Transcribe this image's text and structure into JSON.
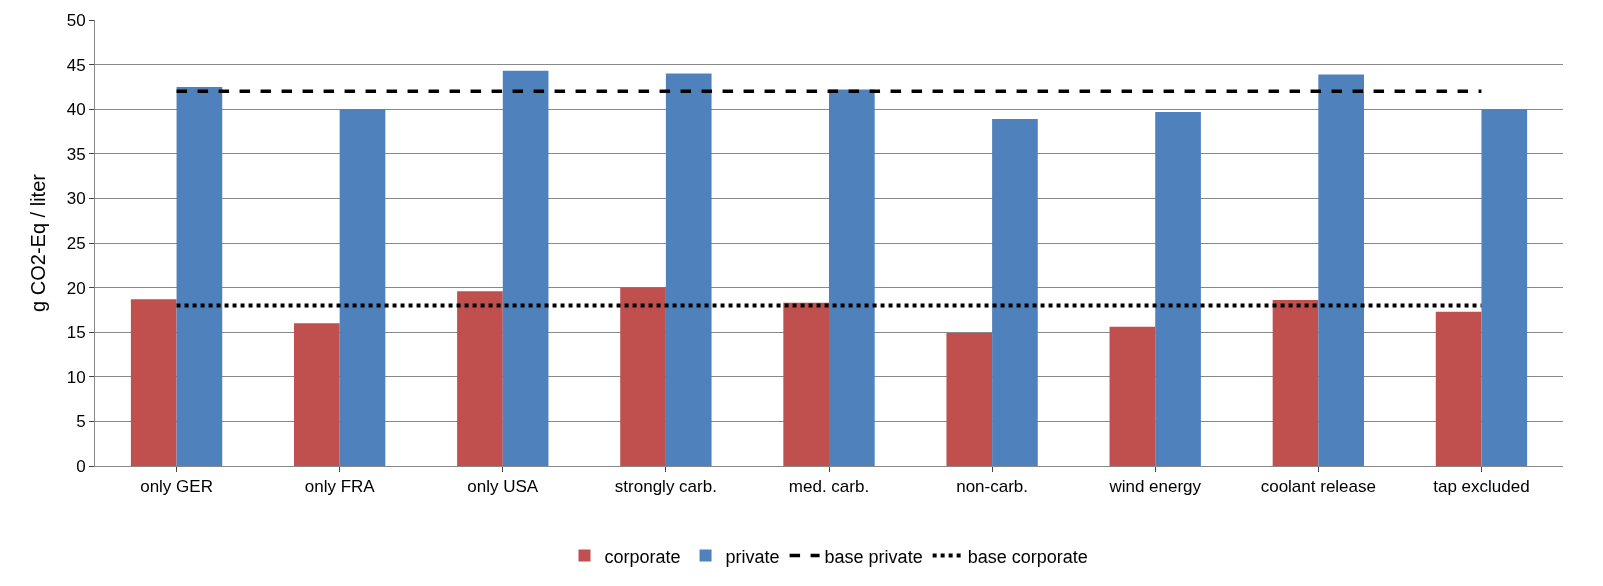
{
  "chart_data": {
    "type": "bar",
    "ylabel": "g CO2-Eq / liter",
    "categories": [
      "only GER",
      "only FRA",
      "only USA",
      "strongly carb.",
      "med. carb.",
      "non-carb.",
      "wind energy",
      "coolant release",
      "tap excluded"
    ],
    "series": [
      {
        "name": "corporate",
        "color": "#c0504d",
        "values": [
          18.7,
          16.0,
          19.6,
          20.0,
          18.3,
          14.9,
          15.6,
          18.6,
          17.3
        ]
      },
      {
        "name": "private",
        "color": "#4f81bd",
        "values": [
          42.5,
          40.0,
          44.3,
          44.0,
          42.2,
          38.9,
          39.7,
          43.9,
          40.0
        ]
      },
      {
        "name": "base private",
        "type": "line",
        "color": "#000000",
        "line_style": "dashed",
        "values": [
          42,
          42,
          42,
          42,
          42,
          42,
          42,
          42,
          42
        ]
      },
      {
        "name": "base corporate",
        "type": "line",
        "color": "#000000",
        "line_style": "dotted",
        "values": [
          18,
          18,
          18,
          18,
          18,
          18,
          18,
          18,
          18
        ]
      }
    ],
    "ylim": [
      0,
      50
    ],
    "yticks": [
      0,
      5,
      10,
      15,
      20,
      25,
      30,
      35,
      40,
      45,
      50
    ],
    "grid": "y",
    "legend": "bottom"
  }
}
